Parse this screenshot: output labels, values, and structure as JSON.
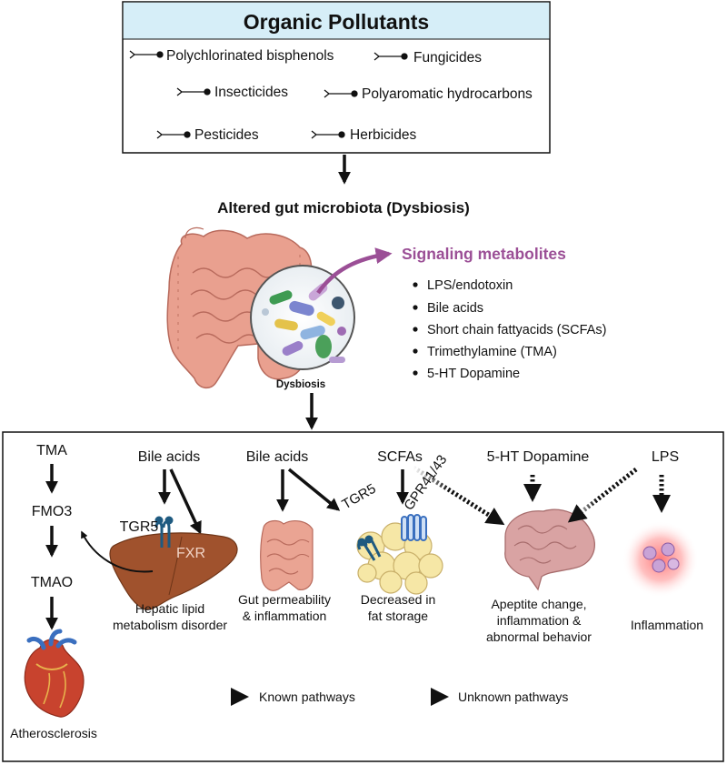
{
  "pollutants": {
    "title": "Organic Pollutants",
    "items": [
      "Polychlorinated bisphenols",
      "Fungicides",
      "Insecticides",
      "Polyaromatic hydrocarbons",
      "Pesticides",
      "Herbicides"
    ]
  },
  "dysbiosis": {
    "heading": "Altered gut microbiota (Dysbiosis)",
    "label": "Dysbiosis"
  },
  "signaling": {
    "title": "Signaling metabolites",
    "items": [
      "LPS/endotoxin",
      "Bile acids",
      "Short chain fattyacids (SCFAs)",
      "Trimethylamine (TMA)",
      "5-HT Dopamine"
    ]
  },
  "pathways": {
    "tma": [
      "TMA",
      "FMO3",
      "TMAO"
    ],
    "atherosclerosis": "Atherosclerosis",
    "bile1": "Bile acids",
    "tgr5_liver": "TGR5",
    "fxr": "FXR",
    "liver_label": [
      "Hepatic lipid",
      "metabolism disorder"
    ],
    "bile2": "Bile acids",
    "gut_label": [
      "Gut permeability",
      "& inflammation"
    ],
    "scfas": "SCFAs",
    "tgr5_fat": "TGR5",
    "gpr": "GPR41/43",
    "fat_label": [
      "Decreased in",
      "fat storage"
    ],
    "ht": "5-HT Dopamine",
    "brain_label": [
      "Apeptite change,",
      "inflammation &",
      "abnormal behavior"
    ],
    "lps": "LPS",
    "inflammation": "Inflammation"
  },
  "legend": {
    "known": "Known pathways",
    "unknown": "Unknown pathways"
  },
  "colors": {
    "header_bg": "#d6eef8",
    "signaling_purple": "#9b4f96",
    "liver": "#a0522d",
    "gut": "#e9a08f",
    "brain": "#d9a3a3",
    "fat": "#f6e7a6",
    "receptor_blue": "#1e5a80"
  }
}
